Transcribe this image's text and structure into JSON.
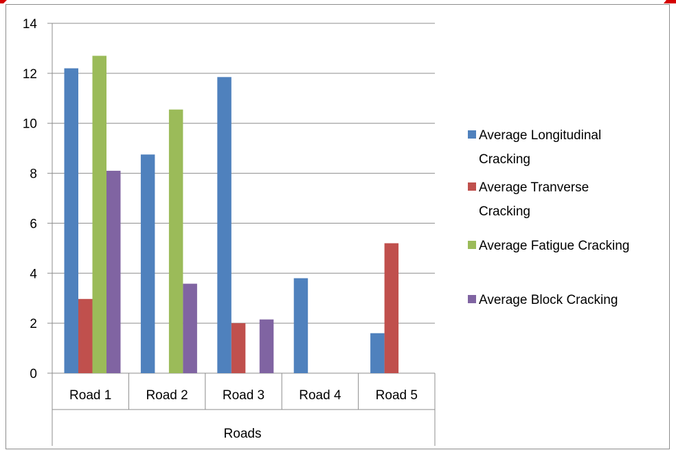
{
  "chart_data": {
    "type": "bar",
    "title": "",
    "xlabel": "Roads",
    "ylabel": "",
    "ylim": [
      0,
      14
    ],
    "yticks": [
      0,
      2,
      4,
      6,
      8,
      10,
      12,
      14
    ],
    "grid": true,
    "legend_position": "right",
    "categories": [
      "Road 1",
      "Road 2",
      "Road 3",
      "Road 4",
      "Road 5"
    ],
    "series": [
      {
        "name": "Average Longitudinal Cracking",
        "color": "#4F81BD",
        "values": [
          12.2,
          8.75,
          11.85,
          3.8,
          1.6
        ]
      },
      {
        "name": "Average Tranverse Cracking",
        "color": "#C0504D",
        "values": [
          2.97,
          0,
          2.0,
          0,
          5.2
        ]
      },
      {
        "name": "Average Fatigue Cracking",
        "color": "#9BBB59",
        "values": [
          12.7,
          10.55,
          0,
          0,
          0
        ]
      },
      {
        "name": "Average Block Cracking",
        "color": "#8064A2",
        "values": [
          8.1,
          3.58,
          2.15,
          0,
          0
        ]
      }
    ]
  }
}
